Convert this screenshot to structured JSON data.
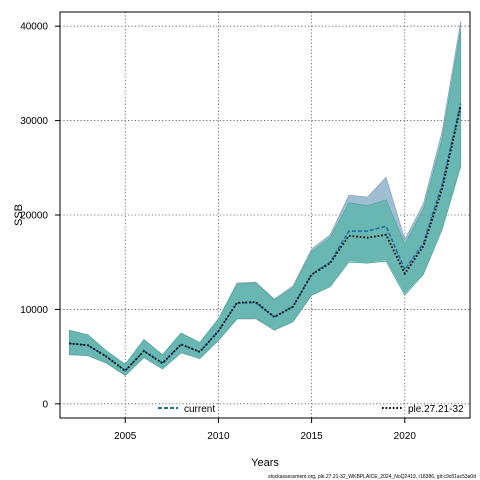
{
  "chart_data": {
    "type": "area",
    "xlabel": "Years",
    "ylabel": "SSB",
    "xlim": [
      2001.5,
      2023.5
    ],
    "ylim": [
      -1500,
      41500
    ],
    "xticks": [
      2005,
      2010,
      2015,
      2020
    ],
    "yticks": [
      0,
      10000,
      20000,
      30000,
      40000
    ],
    "grid": true,
    "legend_position": "bottom",
    "x": [
      2002,
      2003,
      2004,
      2005,
      2006,
      2007,
      2008,
      2009,
      2010,
      2011,
      2012,
      2013,
      2014,
      2015,
      2016,
      2017,
      2018,
      2019,
      2020,
      2021,
      2022,
      2023
    ],
    "series": [
      {
        "name": "current",
        "color": "#1f6ea0",
        "band_color": "#8eb1cb",
        "line_style": "dashed",
        "values": [
          6400,
          6200,
          5000,
          3500,
          5600,
          4300,
          6300,
          5500,
          7700,
          10700,
          10700,
          9200,
          10300,
          13700,
          15000,
          18300,
          18300,
          18800,
          14200,
          17000,
          23200,
          31800
        ],
        "lower": [
          5200,
          5100,
          4300,
          3000,
          4900,
          3700,
          5400,
          4800,
          6700,
          9000,
          9000,
          7800,
          8700,
          11500,
          12500,
          15200,
          15000,
          15300,
          11800,
          13800,
          18700,
          25400
        ],
        "upper": [
          7800,
          7300,
          5600,
          4200,
          6800,
          5200,
          7500,
          6500,
          9000,
          12800,
          12900,
          11100,
          12500,
          16400,
          17900,
          22100,
          21900,
          24000,
          17400,
          21200,
          28800,
          40500
        ]
      },
      {
        "name": "ple.27.21-32",
        "color": "#000000",
        "band_color": "#52b5a4",
        "line_style": "dotted",
        "values": [
          6400,
          6200,
          5000,
          3500,
          5600,
          4300,
          6300,
          5500,
          7700,
          10700,
          10800,
          9200,
          10300,
          13700,
          14900,
          17800,
          17600,
          17900,
          13800,
          16700,
          22700,
          31500
        ],
        "lower": [
          5200,
          5100,
          4300,
          3000,
          4900,
          3700,
          5400,
          4800,
          6700,
          9000,
          9100,
          7800,
          8700,
          11500,
          12400,
          15000,
          14900,
          15100,
          11500,
          13700,
          18400,
          25100
        ],
        "upper": [
          7800,
          7300,
          5600,
          4200,
          6800,
          5200,
          7500,
          6500,
          9000,
          12700,
          12800,
          11000,
          12300,
          16100,
          17600,
          21300,
          21000,
          21600,
          16900,
          20600,
          28000,
          39600
        ]
      }
    ]
  },
  "footer_text": "stockassessment.org, ple.27.21-32_WKBPLAICE_2024_NoQ2419, r18386, git:c9c81ac53a0d"
}
